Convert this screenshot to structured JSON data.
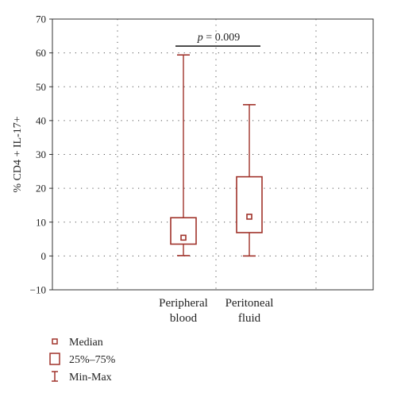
{
  "chart_data": {
    "type": "boxplot",
    "ylabel": "% CD4 + IL-17+",
    "ylim": [
      -10,
      70
    ],
    "yticks": [
      -10,
      0,
      10,
      20,
      30,
      40,
      50,
      60,
      70
    ],
    "categories": [
      "Peripheral\nblood",
      "Peritoneal\nfluid"
    ],
    "series": [
      {
        "category": "Peripheral blood",
        "min": 0.1,
        "q1": 3.5,
        "median": 5.4,
        "q3": 11.3,
        "max": 59.4
      },
      {
        "category": "Peritoneal fluid",
        "min": 0.0,
        "q1": 6.9,
        "median": 11.6,
        "q3": 23.4,
        "max": 44.7
      }
    ],
    "annotation": {
      "text_italic": "p",
      "text_rest": " = 0.009",
      "y": 62
    },
    "legend": [
      "Median",
      "25%–75%",
      "Min-Max"
    ],
    "grid": true,
    "color": "#a0322a"
  }
}
